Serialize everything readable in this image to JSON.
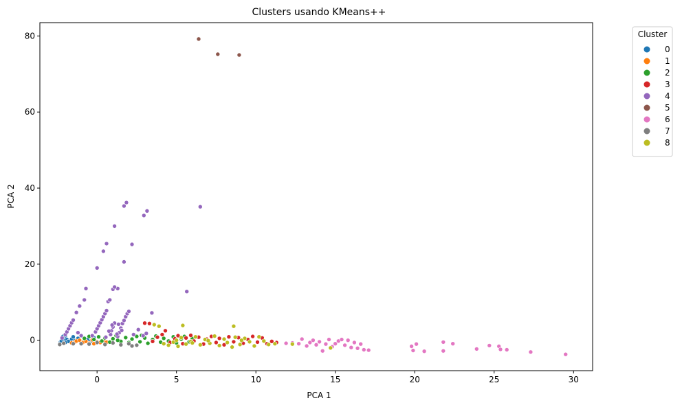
{
  "chart_data": {
    "type": "scatter",
    "title": "Clusters usando KMeans++",
    "xlabel": "PCA 1",
    "ylabel": "PCA 2",
    "xlim": [
      -3.6,
      31.2
    ],
    "ylim": [
      -8,
      83.5
    ],
    "xticks": [
      0,
      5,
      10,
      15,
      20,
      25,
      30
    ],
    "yticks": [
      0,
      20,
      40,
      60,
      80
    ],
    "grid": false,
    "legend": {
      "title": "Cluster",
      "placement": "outside-top-right",
      "labels": [
        "0",
        "1",
        "2",
        "3",
        "4",
        "5",
        "6",
        "7",
        "8"
      ]
    },
    "colors": [
      "#1f77b4",
      "#ff7f0e",
      "#2ca02c",
      "#d62728",
      "#9467bd",
      "#8c564b",
      "#e377c2",
      "#7f7f7f",
      "#bcbd22"
    ],
    "series": [
      {
        "name": "0",
        "points": [
          [
            -2.3,
            -0.5
          ],
          [
            -2.2,
            0.0
          ],
          [
            -2.1,
            0.4
          ],
          [
            -2.0,
            0.8
          ],
          [
            -2.25,
            -0.2
          ],
          [
            -1.9,
            0.2
          ],
          [
            -1.8,
            -0.3
          ],
          [
            -2.0,
            -0.6
          ],
          [
            -1.6,
            0.3
          ],
          [
            -1.4,
            -0.1
          ],
          [
            -1.2,
            0.5
          ],
          [
            -1.0,
            -0.4
          ],
          [
            -0.8,
            0.6
          ],
          [
            -0.6,
            0.2
          ],
          [
            -0.4,
            -0.3
          ],
          [
            -0.2,
            0.7
          ],
          [
            -2.15,
            1.0
          ],
          [
            -1.5,
            0.9
          ]
        ]
      },
      {
        "name": "1",
        "points": [
          [
            -1.4,
            -0.5
          ],
          [
            -1.3,
            -0.2
          ],
          [
            -1.1,
            0.0
          ],
          [
            -0.9,
            -0.6
          ],
          [
            -0.7,
            -0.3
          ],
          [
            -0.5,
            -0.8
          ],
          [
            -0.3,
            0.1
          ],
          [
            0.0,
            -0.4
          ],
          [
            0.2,
            -0.6
          ],
          [
            0.4,
            -0.1
          ],
          [
            0.6,
            -0.5
          ],
          [
            -0.2,
            -0.9
          ],
          [
            -1.6,
            -0.7
          ]
        ]
      },
      {
        "name": "2",
        "points": [
          [
            -0.8,
            0.5
          ],
          [
            -0.5,
            1.0
          ],
          [
            -0.2,
            0.2
          ],
          [
            0.1,
            0.9
          ],
          [
            0.3,
            -0.2
          ],
          [
            0.5,
            0.6
          ],
          [
            0.8,
            -0.5
          ],
          [
            1.0,
            0.4
          ],
          [
            1.2,
            1.2
          ],
          [
            1.5,
            -0.3
          ],
          [
            1.8,
            0.7
          ],
          [
            2.0,
            -0.6
          ],
          [
            2.2,
            0.3
          ],
          [
            2.5,
            1.0
          ],
          [
            2.7,
            -0.4
          ],
          [
            3.0,
            0.6
          ],
          [
            3.2,
            -0.8
          ],
          [
            3.5,
            0.2
          ],
          [
            3.7,
            1.1
          ],
          [
            4.0,
            -0.5
          ],
          [
            4.2,
            0.5
          ],
          [
            4.5,
            -0.2
          ],
          [
            4.8,
            0.9
          ],
          [
            5.0,
            -0.7
          ],
          [
            5.3,
            0.3
          ],
          [
            5.5,
            1.0
          ],
          [
            5.8,
            -0.4
          ],
          [
            6.0,
            0.5
          ],
          [
            1.3,
            0.0
          ],
          [
            2.8,
            1.3
          ]
        ]
      },
      {
        "name": "3",
        "points": [
          [
            3.0,
            4.5
          ],
          [
            3.3,
            4.4
          ],
          [
            3.5,
            -0.3
          ],
          [
            3.8,
            0.8
          ],
          [
            4.1,
            1.5
          ],
          [
            4.3,
            2.5
          ],
          [
            4.6,
            -0.6
          ],
          [
            4.9,
            0.4
          ],
          [
            5.1,
            1.2
          ],
          [
            5.4,
            -0.9
          ],
          [
            5.6,
            0.6
          ],
          [
            5.9,
            1.3
          ],
          [
            6.1,
            -0.2
          ],
          [
            6.4,
            0.8
          ],
          [
            6.7,
            -1.0
          ],
          [
            6.9,
            0.3
          ],
          [
            7.2,
            1.0
          ],
          [
            7.5,
            -0.6
          ],
          [
            7.7,
            0.5
          ],
          [
            8.0,
            -1.2
          ],
          [
            8.3,
            0.9
          ],
          [
            8.6,
            -0.4
          ],
          [
            8.9,
            0.7
          ],
          [
            9.2,
            -0.8
          ],
          [
            9.5,
            0.2
          ],
          [
            9.8,
            1.0
          ],
          [
            10.1,
            -0.5
          ],
          [
            10.4,
            0.6
          ],
          [
            10.7,
            -0.9
          ],
          [
            11.0,
            -0.3
          ],
          [
            11.3,
            -0.6
          ]
        ]
      },
      {
        "name": "4",
        "points": [
          [
            -2.2,
            0.6
          ],
          [
            -2.0,
            1.5
          ],
          [
            -1.9,
            2.2
          ],
          [
            -1.8,
            3.0
          ],
          [
            -1.7,
            3.8
          ],
          [
            -1.6,
            4.6
          ],
          [
            -1.5,
            5.3
          ],
          [
            -1.3,
            7.3
          ],
          [
            -1.1,
            9.0
          ],
          [
            -0.8,
            10.6
          ],
          [
            -0.7,
            13.6
          ],
          [
            -1.2,
            2.0
          ],
          [
            -1.0,
            1.2
          ],
          [
            0.0,
            19.0
          ],
          [
            0.4,
            23.4
          ],
          [
            0.6,
            25.4
          ],
          [
            1.1,
            30.0
          ],
          [
            1.3,
            13.6
          ],
          [
            1.0,
            13.4
          ],
          [
            1.1,
            14.0
          ],
          [
            1.7,
            20.6
          ],
          [
            1.7,
            35.3
          ],
          [
            1.85,
            36.2
          ],
          [
            2.2,
            25.2
          ],
          [
            2.95,
            32.8
          ],
          [
            3.15,
            34.0
          ],
          [
            3.45,
            7.2
          ],
          [
            5.65,
            12.8
          ],
          [
            6.5,
            35.1
          ],
          [
            -0.3,
            1.2
          ],
          [
            -0.1,
            2.2
          ],
          [
            0.0,
            3.0
          ],
          [
            0.1,
            3.8
          ],
          [
            0.2,
            4.6
          ],
          [
            0.3,
            5.4
          ],
          [
            0.4,
            6.2
          ],
          [
            0.5,
            7.0
          ],
          [
            0.6,
            7.8
          ],
          [
            0.7,
            10.2
          ],
          [
            0.8,
            10.6
          ],
          [
            0.85,
            1.5
          ],
          [
            0.9,
            2.5
          ],
          [
            1.0,
            3.5
          ],
          [
            1.1,
            4.5
          ],
          [
            1.3,
            1.0
          ],
          [
            1.4,
            2.0
          ],
          [
            1.5,
            3.2
          ],
          [
            1.6,
            4.4
          ],
          [
            1.7,
            5.2
          ],
          [
            1.8,
            6.2
          ],
          [
            1.9,
            7.0
          ],
          [
            2.0,
            7.6
          ],
          [
            2.3,
            1.5
          ],
          [
            2.6,
            2.8
          ],
          [
            2.9,
            1.2
          ],
          [
            3.1,
            1.8
          ],
          [
            0.55,
            0.8
          ],
          [
            1.25,
            1.6
          ],
          [
            1.35,
            4.2
          ],
          [
            0.75,
            2.4
          ],
          [
            0.95,
            4.0
          ],
          [
            1.55,
            2.6
          ]
        ]
      },
      {
        "name": "5",
        "points": [
          [
            6.4,
            79.2
          ],
          [
            7.6,
            75.2
          ],
          [
            8.95,
            75.0
          ]
        ]
      },
      {
        "name": "6",
        "points": [
          [
            11.9,
            -0.8
          ],
          [
            12.3,
            -0.7
          ],
          [
            12.7,
            -0.9
          ],
          [
            12.9,
            0.3
          ],
          [
            13.2,
            -1.5
          ],
          [
            13.4,
            -0.6
          ],
          [
            13.6,
            0.0
          ],
          [
            13.8,
            -1.2
          ],
          [
            14.0,
            -0.4
          ],
          [
            14.2,
            -2.8
          ],
          [
            14.4,
            -1.0
          ],
          [
            14.6,
            0.2
          ],
          [
            14.8,
            -1.7
          ],
          [
            15.0,
            -0.9
          ],
          [
            15.2,
            -0.2
          ],
          [
            15.4,
            0.2
          ],
          [
            15.6,
            -1.3
          ],
          [
            15.8,
            0.0
          ],
          [
            16.0,
            -1.9
          ],
          [
            16.2,
            -0.6
          ],
          [
            16.4,
            -2.1
          ],
          [
            16.6,
            -1.0
          ],
          [
            16.8,
            -2.5
          ],
          [
            17.1,
            -2.6
          ],
          [
            19.8,
            -1.6
          ],
          [
            19.9,
            -2.7
          ],
          [
            20.1,
            -1.0
          ],
          [
            20.6,
            -2.9
          ],
          [
            21.8,
            -0.5
          ],
          [
            21.8,
            -2.8
          ],
          [
            22.4,
            -0.9
          ],
          [
            23.9,
            -2.3
          ],
          [
            24.7,
            -1.4
          ],
          [
            25.3,
            -1.6
          ],
          [
            25.4,
            -2.4
          ],
          [
            25.8,
            -2.5
          ],
          [
            27.3,
            -3.1
          ],
          [
            29.5,
            -3.7
          ]
        ]
      },
      {
        "name": "7",
        "points": [
          [
            -2.35,
            -1.1
          ],
          [
            -2.1,
            -0.8
          ],
          [
            -1.5,
            -0.9
          ],
          [
            -0.5,
            -1.0
          ],
          [
            0.5,
            -1.1
          ],
          [
            1.5,
            -1.2
          ],
          [
            2.2,
            -1.5
          ],
          [
            2.5,
            -1.3
          ],
          [
            1.0,
            -0.7
          ],
          [
            0.0,
            -0.6
          ],
          [
            -1.0,
            -0.9
          ],
          [
            2.0,
            -0.9
          ]
        ]
      },
      {
        "name": "8",
        "points": [
          [
            3.6,
            4.1
          ],
          [
            3.9,
            3.7
          ],
          [
            5.4,
            3.9
          ],
          [
            8.6,
            3.7
          ],
          [
            4.2,
            -0.9
          ],
          [
            4.5,
            -1.3
          ],
          [
            4.8,
            -0.5
          ],
          [
            5.1,
            -1.6
          ],
          [
            5.3,
            0.7
          ],
          [
            5.6,
            -1.0
          ],
          [
            5.9,
            -0.3
          ],
          [
            6.2,
            0.9
          ],
          [
            6.5,
            -1.2
          ],
          [
            6.8,
            0.2
          ],
          [
            7.1,
            -0.8
          ],
          [
            7.4,
            1.1
          ],
          [
            7.7,
            -1.4
          ],
          [
            8.0,
            0.3
          ],
          [
            8.2,
            -0.6
          ],
          [
            8.5,
            -1.8
          ],
          [
            8.7,
            0.8
          ],
          [
            9.0,
            -1.1
          ],
          [
            9.3,
            0.5
          ],
          [
            9.6,
            -0.4
          ],
          [
            9.9,
            -1.5
          ],
          [
            10.2,
            0.9
          ],
          [
            10.5,
            -0.2
          ],
          [
            10.8,
            -1.1
          ],
          [
            11.2,
            -0.9
          ],
          [
            12.3,
            -1.0
          ],
          [
            14.7,
            -2.0
          ],
          [
            5.0,
            0.0
          ],
          [
            6.0,
            -0.7
          ],
          [
            7.0,
            -0.1
          ],
          [
            9.1,
            0.0
          ]
        ]
      }
    ]
  }
}
